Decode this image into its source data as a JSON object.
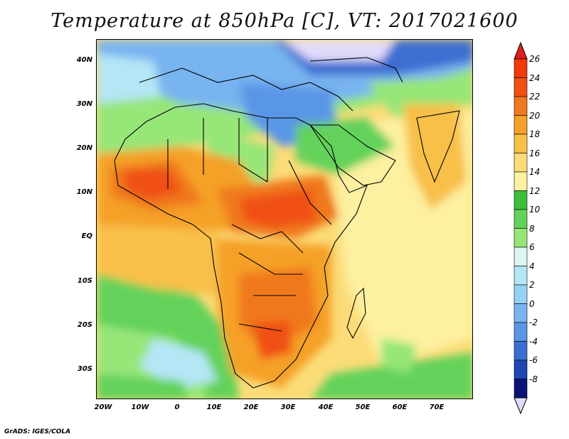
{
  "title": "Temperature at 850hPa [C], VT: 2017021600",
  "footer": "GrADS: IGES/COLA",
  "map": {
    "lon_labels": [
      "20W",
      "10W",
      "0",
      "10E",
      "20E",
      "30E",
      "40E",
      "50E",
      "60E",
      "70E"
    ],
    "lat_labels": [
      "40N",
      "30N",
      "20N",
      "10N",
      "EQ",
      "10S",
      "20S",
      "30S"
    ]
  },
  "colorbar": {
    "labels": [
      "26",
      "24",
      "22",
      "20",
      "18",
      "16",
      "14",
      "12",
      "10",
      "8",
      "6",
      "4",
      "2",
      "0",
      "-2",
      "-4",
      "-6",
      "-8"
    ],
    "colors": [
      "#f03a0a",
      "#f05014",
      "#f0781e",
      "#f5a028",
      "#f8c048",
      "#fbdc78",
      "#fdf0a0",
      "#3cbe3c",
      "#64d25a",
      "#96e678",
      "#dcf5f0",
      "#b4e6f5",
      "#96d2f5",
      "#78b4f0",
      "#5a96e6",
      "#3c6ed2",
      "#1e46b4",
      "#0a1478"
    ],
    "cap_top": "#dc1e1e",
    "cap_bottom": "#e1dcfa"
  }
}
